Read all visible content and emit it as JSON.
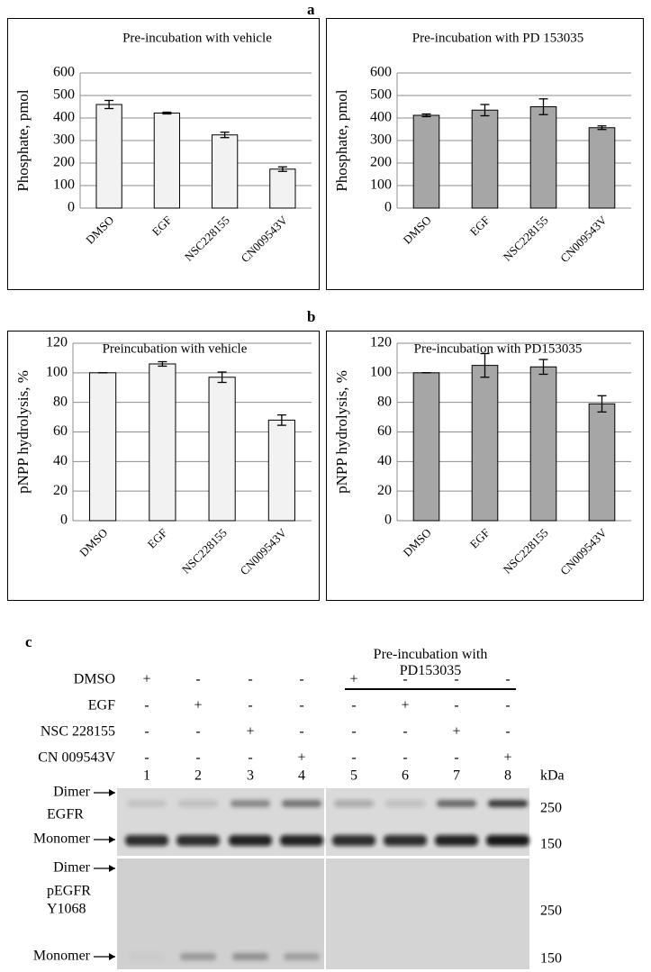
{
  "panels": [
    "a",
    "b",
    "c"
  ],
  "chart_data": [
    {
      "type": "bar",
      "title": "Pre-incubation with vehicle",
      "ylabel": "Phosphate, pmol",
      "categories": [
        "DMSO",
        "EGF",
        "NSC228155",
        "CN009543V"
      ],
      "values": [
        460,
        422,
        325,
        173
      ],
      "errors": [
        18,
        4,
        12,
        10
      ],
      "color": "#f2f2f2",
      "ylim": [
        0,
        600
      ],
      "yticks": [
        0,
        100,
        200,
        300,
        400,
        500,
        600
      ],
      "grid": true
    },
    {
      "type": "bar",
      "title": "Pre-incubation with PD 153035",
      "ylabel": "Phosphate, pmol",
      "categories": [
        "DMSO",
        "EGF",
        "NSC228155",
        "CN009543V"
      ],
      "values": [
        412,
        435,
        450,
        357
      ],
      "errors": [
        6,
        25,
        35,
        8
      ],
      "color": "#a6a6a6",
      "ylim": [
        0,
        600
      ],
      "yticks": [
        0,
        100,
        200,
        300,
        400,
        500,
        600
      ],
      "grid": true
    },
    {
      "type": "bar",
      "title": "Preincubation with vehicle",
      "ylabel": "pNPP hydrolysis, %",
      "categories": [
        "DMSO",
        "EGF",
        "NSC228155",
        "CN009543V"
      ],
      "values": [
        100,
        106,
        97,
        68
      ],
      "errors": [
        0,
        1.5,
        3.5,
        3.5
      ],
      "color": "#f2f2f2",
      "ylim": [
        0,
        120
      ],
      "yticks": [
        0,
        20,
        40,
        60,
        80,
        100,
        120
      ],
      "grid": true
    },
    {
      "type": "bar",
      "title": "Pre-incubation with PD153035",
      "ylabel": "pNPP hydrolysis, %",
      "categories": [
        "DMSO",
        "EGF",
        "NSC228155",
        "CN009543V"
      ],
      "values": [
        100,
        105,
        104,
        79
      ],
      "errors": [
        0,
        8,
        5,
        5.5
      ],
      "color": "#a6a6a6",
      "ylim": [
        0,
        120
      ],
      "yticks": [
        0,
        20,
        40,
        60,
        80,
        100,
        120
      ],
      "grid": true
    }
  ],
  "blot": {
    "header": "Pre-incubation with PD153035",
    "rows": [
      {
        "label": "DMSO",
        "signs": [
          "+",
          "-",
          "-",
          "-",
          "+",
          "-",
          "-",
          "-"
        ]
      },
      {
        "label": "EGF",
        "signs": [
          "-",
          "+",
          "-",
          "-",
          "-",
          "+",
          "-",
          "-"
        ]
      },
      {
        "label": "NSC 228155",
        "signs": [
          "-",
          "-",
          "+",
          "-",
          "-",
          "-",
          "+",
          "-"
        ]
      },
      {
        "label": "CN 009543V",
        "signs": [
          "-",
          "-",
          "-",
          "+",
          "-",
          "-",
          "-",
          "+"
        ]
      }
    ],
    "lanes": [
      1,
      2,
      3,
      4,
      5,
      6,
      7,
      8
    ],
    "unit": "kDa",
    "egfr_panel": {
      "labels": [
        "Dimer",
        "EGFR",
        "Monomer"
      ],
      "markers": [
        250,
        150
      ]
    },
    "pegfr_panel": {
      "labels": [
        "Dimer",
        "pEGFR",
        "Y1068",
        "Monomer"
      ],
      "markers": [
        250,
        150
      ]
    }
  }
}
